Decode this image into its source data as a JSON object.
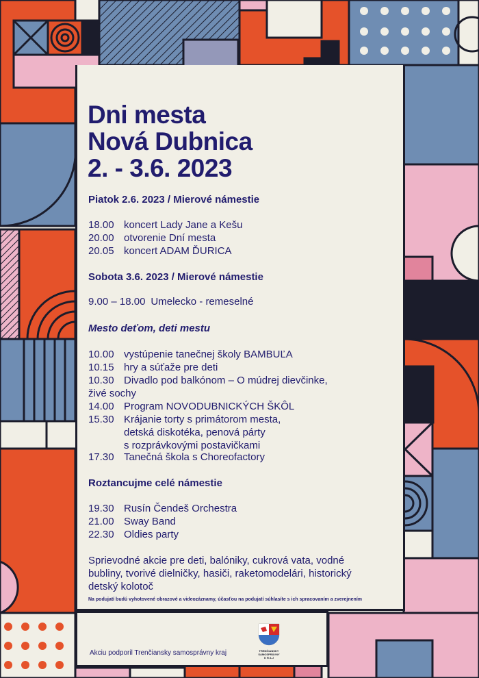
{
  "colors": {
    "navy": "#211c6e",
    "orange": "#e5522a",
    "blue": "#6f8db3",
    "pink": "#eeb4c8",
    "dark": "#1b1c2b",
    "cream": "#f1efe6"
  },
  "title": [
    "Dni mesta",
    "Nová Dubnica",
    "2. - 3.6. 2023"
  ],
  "friday": {
    "heading": "Piatok 2.6. 2023  / Mierové námestie",
    "items": [
      {
        "time": "18.00",
        "text": "koncert Lady Jane a Kešu"
      },
      {
        "time": "20.00",
        "text": "otvorenie Dní mesta"
      },
      {
        "time": "20.05",
        "text": "koncert ADAM ĎURICA"
      }
    ]
  },
  "saturday": {
    "heading": "Sobota 3.6. 2023 / Mierové námestie",
    "items": [
      {
        "time": "9.00 – 18.00",
        "text": "Umelecko - remeselné"
      }
    ]
  },
  "kids": {
    "heading": "Mesto deťom, deti mestu",
    "items": [
      {
        "time": "10.00",
        "text": "vystúpenie tanečnej školy BAMBUĽA"
      },
      {
        "time": "10.15",
        "text": "hry a súťaže pre deti"
      },
      {
        "time": "10.30",
        "text": "Divadlo pod balkónom – O múdrej dievčinke,",
        "cont": "živé sochy"
      },
      {
        "time": "14.00",
        "text": "Program NOVODUBNICKÝCH ŠKÔL"
      },
      {
        "time": "15.30",
        "text": "Krájanie torty s primátorom mesta,",
        "cont": "detská diskotéka, penová párty",
        "cont2": "s rozprávkovými postavičkami"
      },
      {
        "time": "17.30",
        "text": "Tanečná škola s Choreofactory"
      }
    ]
  },
  "dance": {
    "heading": "Roztancujme celé námestie",
    "items": [
      {
        "time": "19.30",
        "text": "Rusín Čendeš Orchestra"
      },
      {
        "time": "21.00",
        "text": "Sway Band"
      },
      {
        "time": "22.30",
        "text": "Oldies party"
      }
    ]
  },
  "extras": "Sprievodné akcie pre deti, balóniky, cukrová vata, vodné bubliny, tvorivé dielničky, hasiči, raketomodelári, historický detský kolotoč",
  "disclaimer": "Na podujatí budú vyhotovené obrazové  a videozáznamy, účasťou na podujatí súhlasíte s ich spracovaním a zverejnením",
  "footer": {
    "support": "Akciu podporil Trenčiansky samosprávny kraj",
    "logo_text": "TRENČIANSKY SAMOSPRÁVNY K R A J"
  }
}
